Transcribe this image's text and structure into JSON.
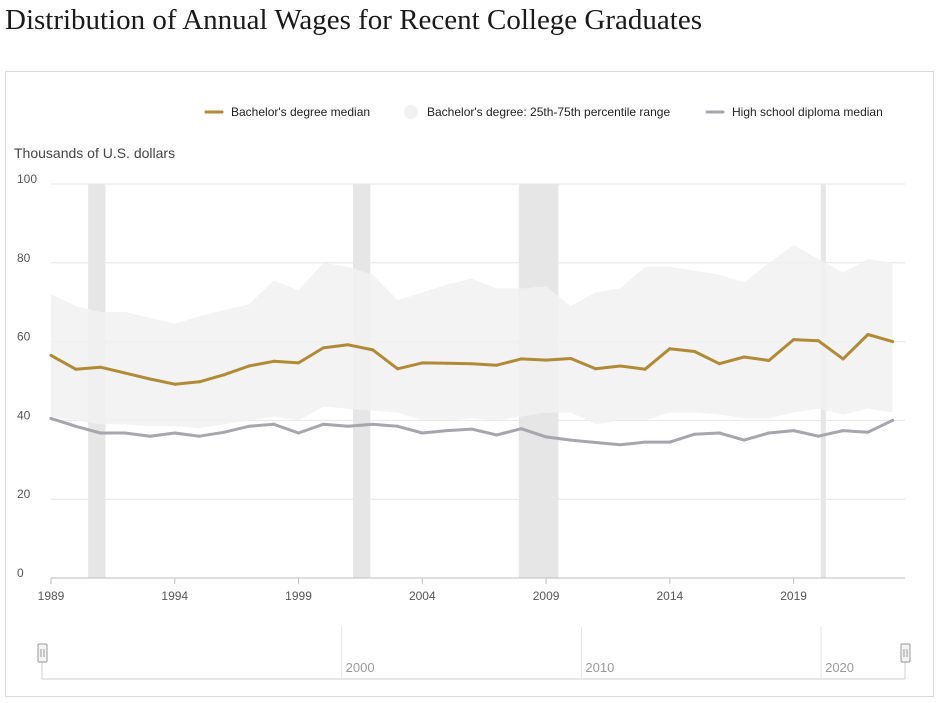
{
  "page": {
    "title": "Distribution of Annual Wages for Recent College Graduates"
  },
  "colors": {
    "bachelor": "#b08a35",
    "highschool": "#a6a6ad",
    "band": "#f1f1f1",
    "recession": "#e6e6e6",
    "grid": "#e6e6e6",
    "axis": "#bdbdbd"
  },
  "chart_data": {
    "type": "line",
    "title": "Distribution of Annual Wages for Recent College Graduates",
    "ylabel": "Thousands of U.S. dollars",
    "xlabel": "",
    "ylim": [
      0,
      100
    ],
    "yticks": [
      0,
      20,
      40,
      60,
      80,
      100
    ],
    "xlim": [
      1989,
      2023.5
    ],
    "xticks": [
      1989,
      1994,
      1999,
      2004,
      2009,
      2014,
      2019
    ],
    "grid": true,
    "legend_position": "top",
    "legend": [
      {
        "key": "bachelor",
        "label": "Bachelor's degree median"
      },
      {
        "key": "band",
        "label": "Bachelor's degree: 25th-75th percentile range"
      },
      {
        "key": "highschool",
        "label": "High school diploma median"
      }
    ],
    "x": [
      1989,
      1990,
      1991,
      1992,
      1993,
      1994,
      1995,
      1996,
      1997,
      1998,
      1999,
      2000,
      2001,
      2002,
      2003,
      2004,
      2005,
      2006,
      2007,
      2008,
      2009,
      2010,
      2011,
      2012,
      2013,
      2014,
      2015,
      2016,
      2017,
      2018,
      2019,
      2020,
      2021,
      2022,
      2023
    ],
    "series": [
      {
        "name": "Bachelor's degree median",
        "key": "bachelor",
        "values": [
          56.5,
          53,
          53.5,
          52,
          50.5,
          49.2,
          49.8,
          51.6,
          53.8,
          55,
          54.6,
          58.4,
          59.2,
          57.9,
          53.1,
          54.6,
          54.5,
          54.4,
          54,
          55.6,
          55.3,
          55.7,
          53.1,
          53.8,
          53,
          58.2,
          57.5,
          54.4,
          56.1,
          55.2,
          60.5,
          60.2,
          55.6,
          61.8,
          60
        ]
      },
      {
        "name": "High school diploma median",
        "key": "highschool",
        "values": [
          40.5,
          38.5,
          36.8,
          36.8,
          36,
          36.8,
          36,
          37,
          38.5,
          39,
          36.8,
          39,
          38.5,
          39,
          38.5,
          36.8,
          37.4,
          37.8,
          36.3,
          37.9,
          35.8,
          35,
          34.4,
          33.8,
          34.5,
          34.5,
          36.5,
          36.8,
          35,
          36.8,
          37.4,
          36,
          37.4,
          37,
          40
        ]
      }
    ],
    "band": {
      "name": "Bachelor's degree: 25th-75th percentile range",
      "upper": [
        72,
        69,
        67.5,
        67.5,
        66,
        64.5,
        66.5,
        68,
        69.5,
        75.5,
        73,
        80,
        79,
        77,
        70.5,
        72.5,
        74.5,
        76,
        73.5,
        73.5,
        74,
        69,
        72.5,
        73.5,
        79,
        79,
        78,
        77,
        75,
        80,
        84.5,
        81,
        77.5,
        81,
        80
      ],
      "lower": [
        41,
        40,
        39,
        39,
        38.5,
        38.5,
        38,
        39,
        40,
        41,
        40,
        43.5,
        43,
        42.5,
        42,
        40,
        40,
        40.5,
        40,
        41,
        42,
        42,
        39,
        40,
        40,
        42,
        42,
        41.5,
        40.5,
        40.5,
        42,
        43,
        41.5,
        43,
        42
      ]
    },
    "recessions": [
      [
        1990.5,
        1991.2
      ],
      [
        2001.2,
        2001.9
      ],
      [
        2007.9,
        2009.5
      ],
      [
        2020.1,
        2020.3
      ]
    ],
    "navigator": {
      "labels": [
        "2000",
        "2010",
        "2020"
      ],
      "label_years": [
        2000,
        2010,
        2020
      ],
      "range": [
        1987.5,
        2023.5
      ]
    }
  }
}
